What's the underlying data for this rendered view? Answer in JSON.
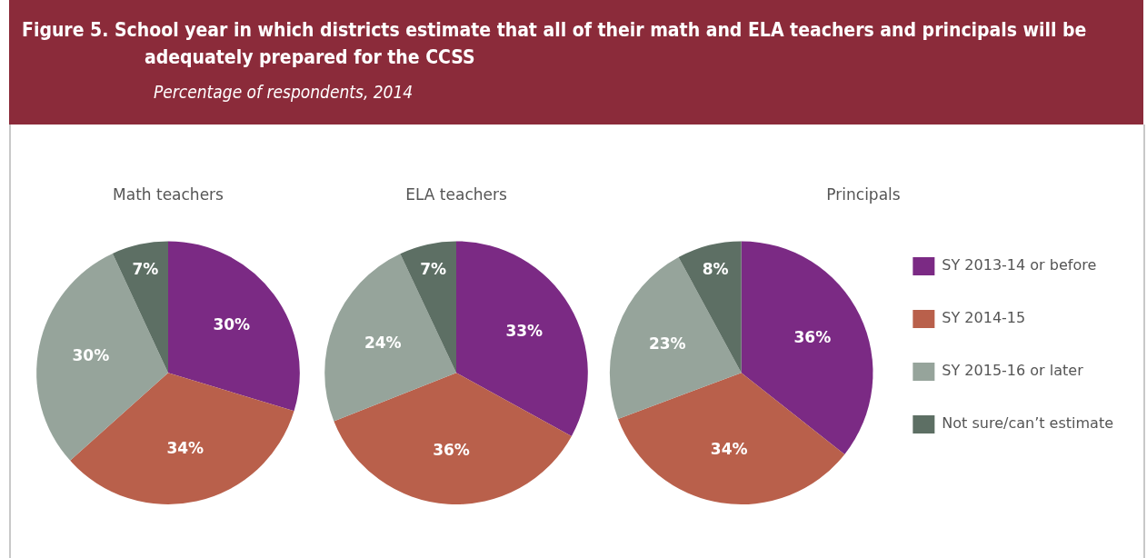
{
  "chart_data": [
    {
      "type": "other",
      "title": "Figure 5. School year in which districts estimate that all of their math and ELA teachers and principals will be adequately prepared for the CCSS",
      "subtitle": "Percentage of respondents, 2014"
    },
    {
      "type": "pie",
      "title": "Math teachers",
      "categories": [
        null,
        null,
        null,
        null
      ],
      "values": [
        30,
        34,
        30,
        7
      ],
      "value_labels": [
        "30%",
        "34%",
        "30%",
        "7%"
      ],
      "colors": [
        "#7b2a84",
        "#b9604b",
        "#96a49b",
        "#5d6f64"
      ]
    },
    {
      "type": "pie",
      "title": "ELA teachers",
      "categories": [
        null,
        null,
        null,
        null
      ],
      "values": [
        33,
        36,
        24,
        7
      ],
      "value_labels": [
        "33%",
        "36%",
        "24%",
        "7%"
      ],
      "colors": [
        "#7b2a84",
        "#b9604b",
        "#96a49b",
        "#5d6f64"
      ]
    },
    {
      "type": "pie",
      "title": "Principals",
      "categories": [
        "SY 2013-14 or before",
        "SY 2014-15",
        "SY 2015-16 or later",
        "Not sure/can’t estimate"
      ],
      "values": [
        36,
        34,
        23,
        8
      ],
      "value_labels": [
        "36%",
        "34%",
        "23%",
        "8%"
      ],
      "colors": [
        "#7b2a84",
        "#b9604b",
        "#96a49b",
        "#5d6f64"
      ],
      "legend": "right"
    }
  ]
}
